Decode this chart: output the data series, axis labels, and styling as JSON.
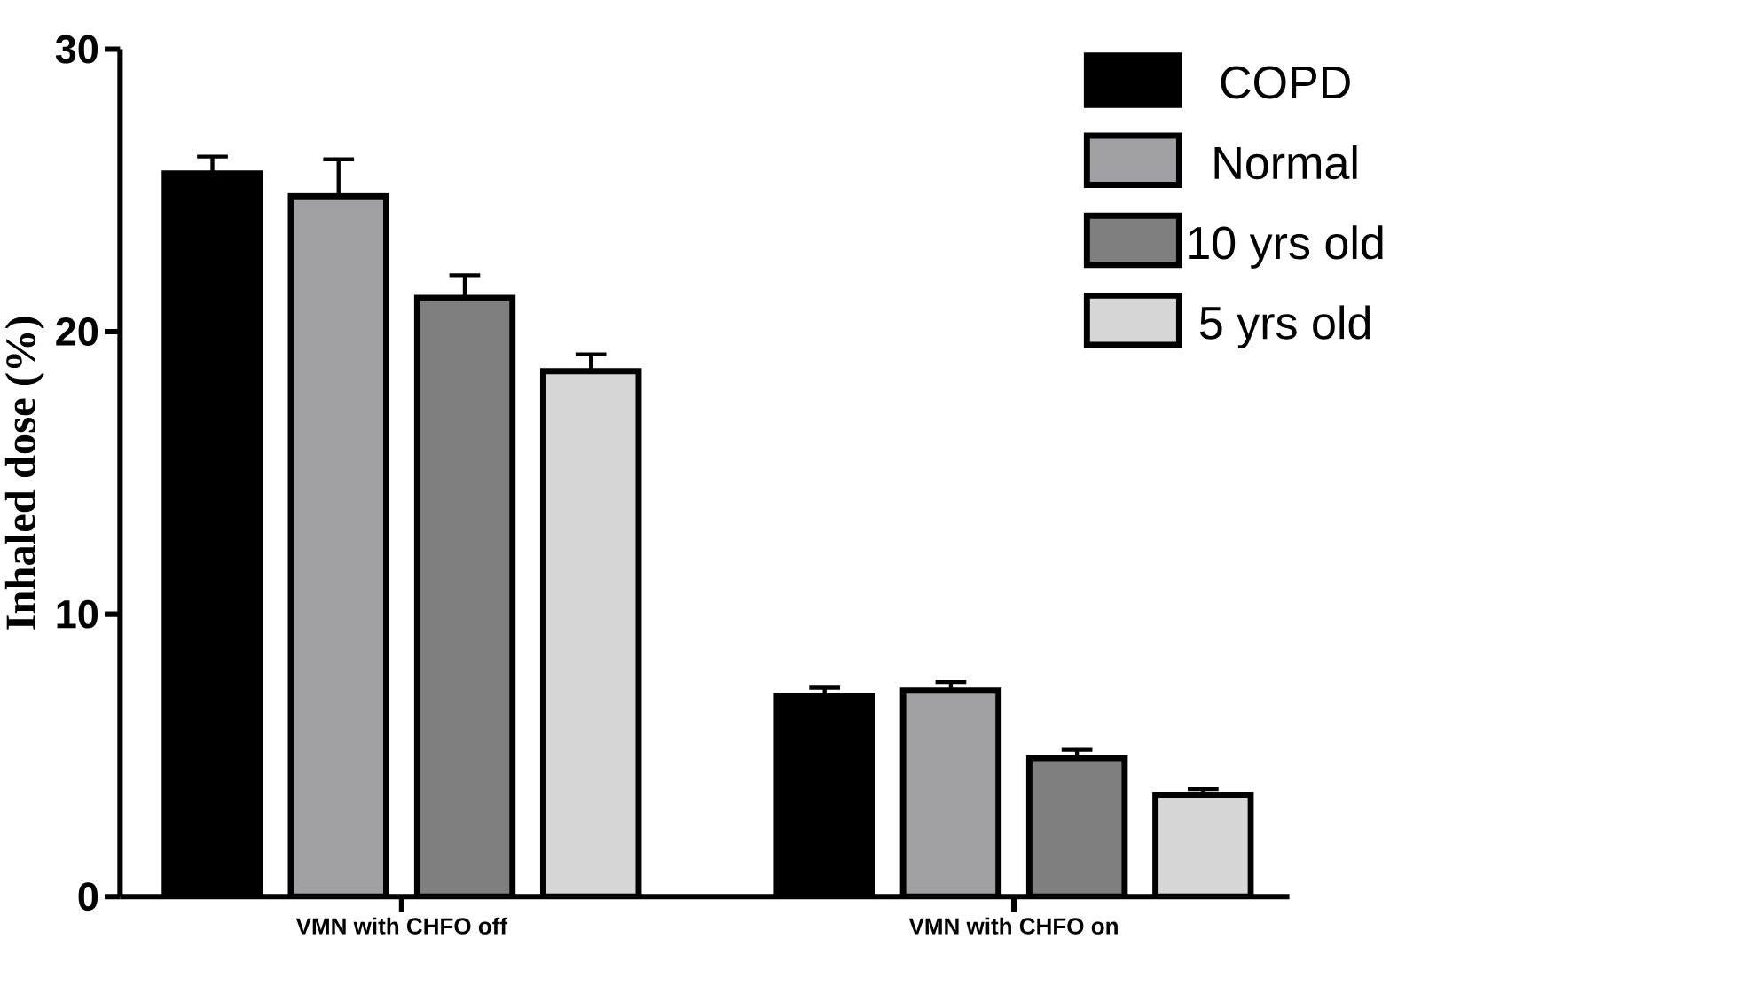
{
  "chart_data": {
    "type": "bar",
    "ylabel": "Inhaled dose (%)",
    "categories": [
      "VMN with CHFO off",
      "VMN with CHFO on"
    ],
    "series": [
      {
        "name": "COPD",
        "color": "#000000",
        "values": [
          25.6,
          7.1
        ],
        "errors": [
          0.6,
          0.3
        ]
      },
      {
        "name": "Normal",
        "color": "#a0a0a4",
        "values": [
          24.8,
          7.3
        ],
        "errors": [
          1.3,
          0.3
        ]
      },
      {
        "name": "10 yrs old",
        "color": "#7f7f7f",
        "values": [
          21.2,
          4.9
        ],
        "errors": [
          0.8,
          0.3
        ]
      },
      {
        "name": "5 yrs old",
        "color": "#d6d6d6",
        "values": [
          18.6,
          3.6
        ],
        "errors": [
          0.6,
          0.2
        ]
      }
    ],
    "ylim": [
      0,
      30
    ],
    "yticks": [
      0,
      10,
      20,
      30
    ],
    "grid": false,
    "legend": "top right"
  }
}
